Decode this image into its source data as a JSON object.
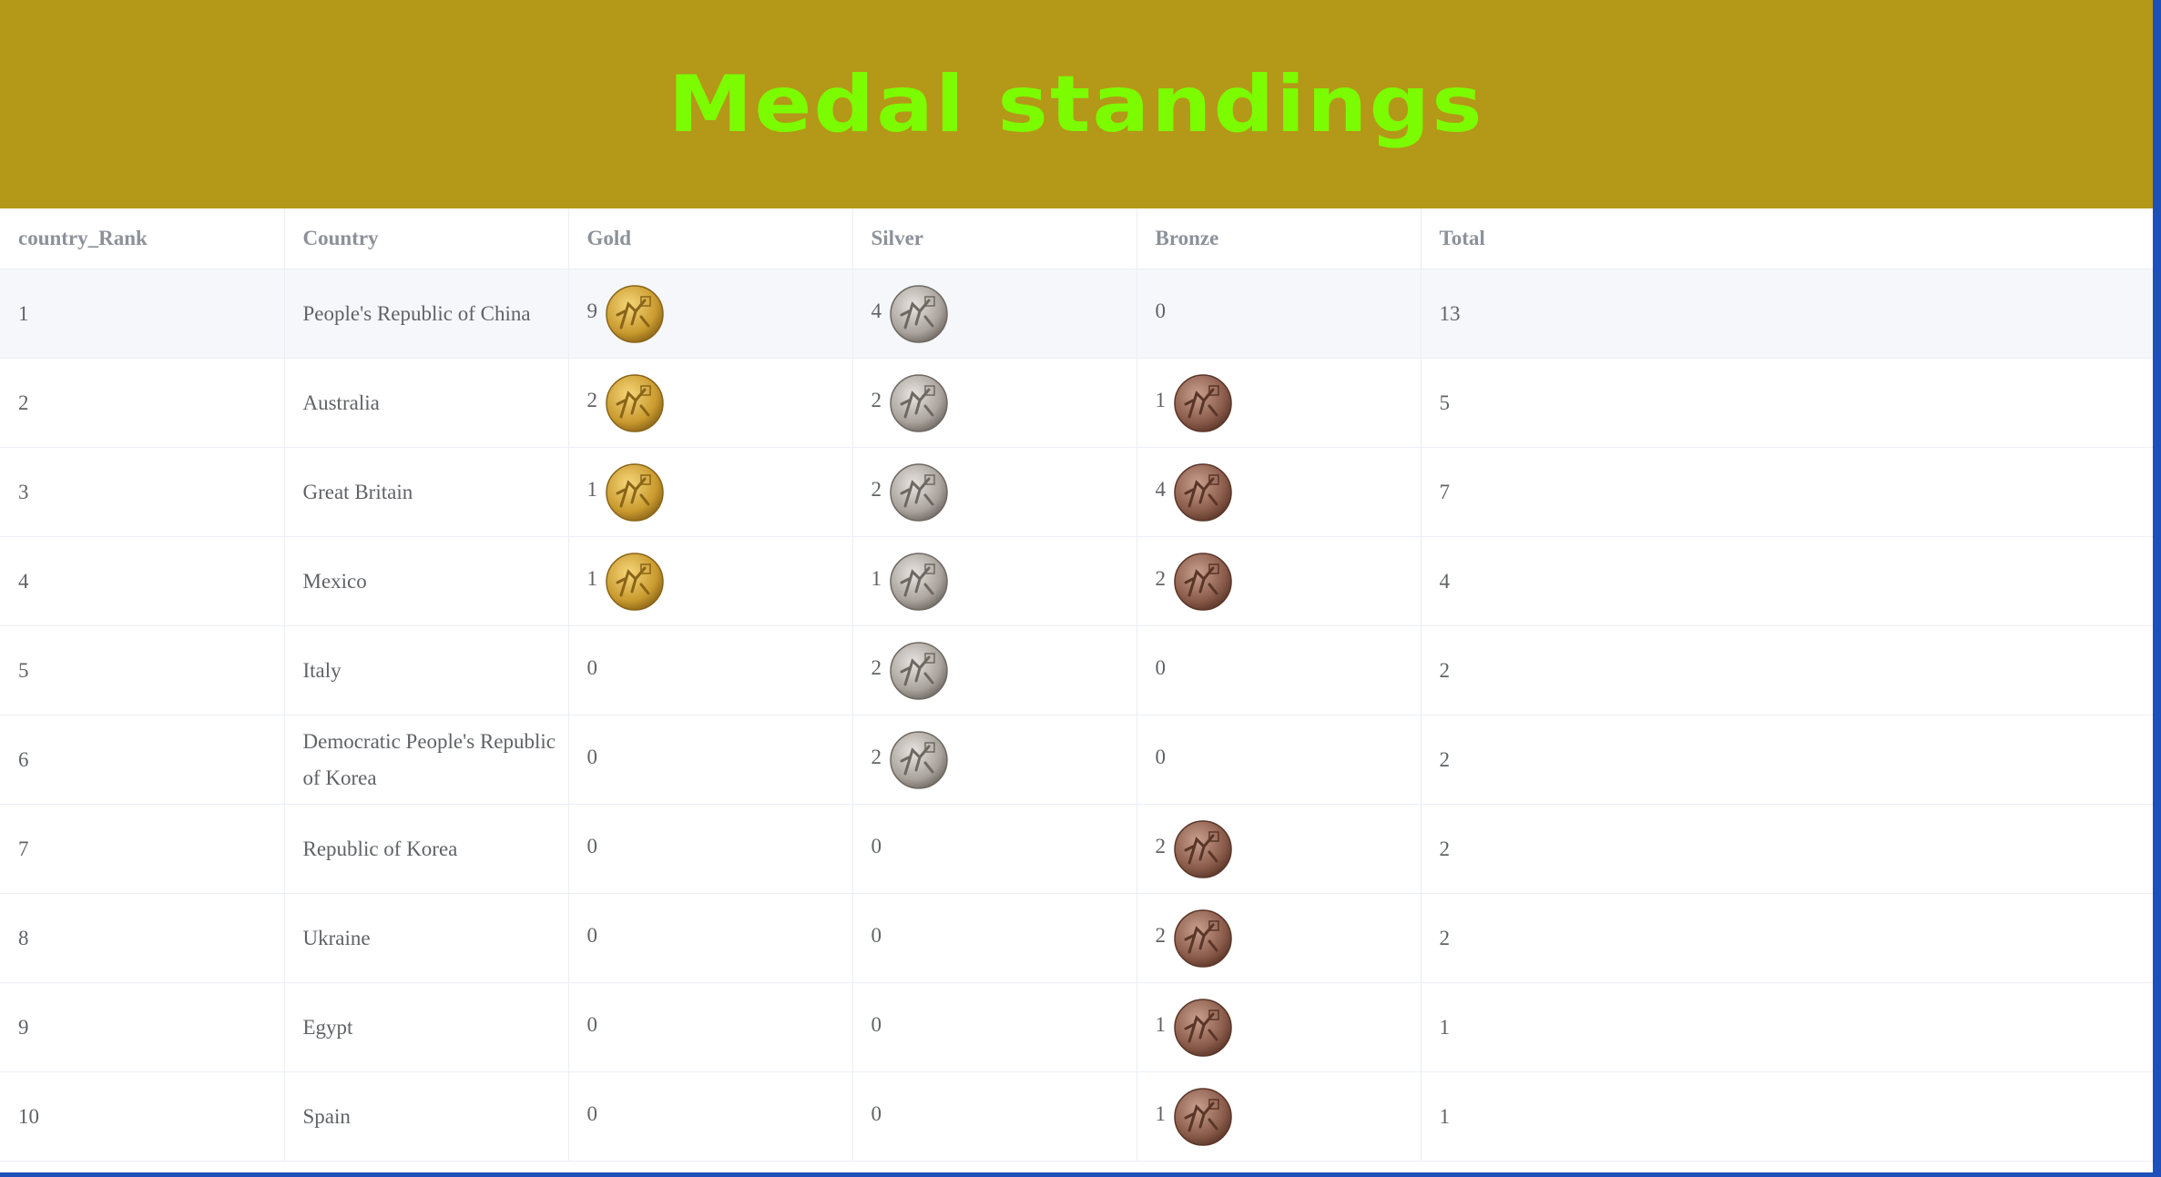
{
  "header": {
    "title": "Medal standings"
  },
  "table": {
    "columns": [
      "country_Rank",
      "Country",
      "Gold",
      "Silver",
      "Bronze",
      "Total"
    ],
    "rows": [
      [
        1,
        "People's Republic of China",
        9,
        4,
        0,
        13
      ],
      [
        2,
        "Australia",
        2,
        2,
        1,
        5
      ],
      [
        3,
        "Great Britain",
        1,
        2,
        4,
        7
      ],
      [
        4,
        "Mexico",
        1,
        1,
        2,
        4
      ],
      [
        5,
        "Italy",
        0,
        2,
        0,
        2
      ],
      [
        6,
        "Democratic People's Republic of Korea",
        0,
        2,
        0,
        2
      ],
      [
        7,
        "Republic of Korea",
        0,
        0,
        2,
        2
      ],
      [
        8,
        "Ukraine",
        0,
        0,
        2,
        2
      ],
      [
        9,
        "Egypt",
        0,
        0,
        1,
        1
      ],
      [
        10,
        "Spain",
        0,
        0,
        1,
        1
      ]
    ]
  }
}
